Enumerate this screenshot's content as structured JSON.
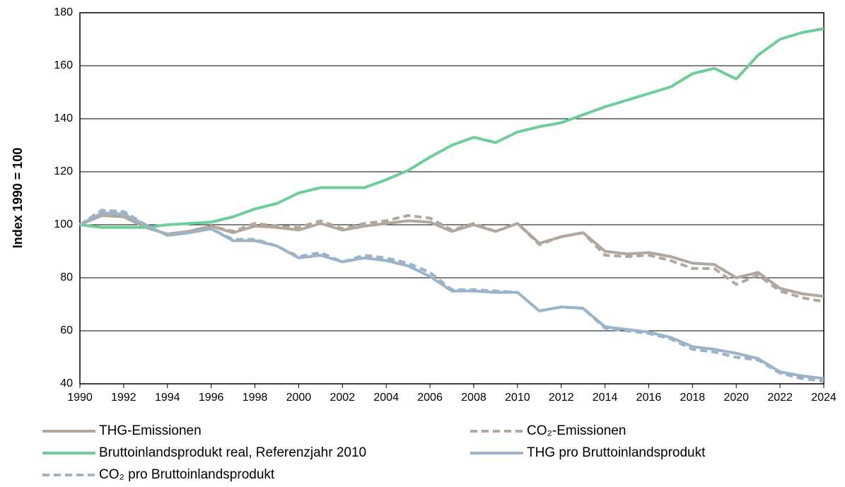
{
  "chart_data": {
    "type": "line",
    "y_label": "Index 1990 = 100",
    "x": [
      1990,
      1991,
      1992,
      1993,
      1994,
      1995,
      1996,
      1997,
      1998,
      1999,
      2000,
      2001,
      2002,
      2003,
      2004,
      2005,
      2006,
      2007,
      2008,
      2009,
      2010,
      2011,
      2012,
      2013,
      2014,
      2015,
      2016,
      2017,
      2018,
      2019,
      2020,
      2021,
      2022,
      2023,
      2024
    ],
    "xlim": [
      1990,
      2024
    ],
    "xticks": [
      1990,
      1992,
      1994,
      1996,
      1998,
      2000,
      2002,
      2004,
      2006,
      2008,
      2010,
      2012,
      2014,
      2016,
      2018,
      2020,
      2022,
      2024
    ],
    "ylim": [
      40,
      180
    ],
    "yticks": [
      40,
      60,
      80,
      100,
      120,
      140,
      160,
      180
    ],
    "grid": true,
    "legend": "bottom",
    "series": [
      {
        "name": "THG-Emissionen",
        "color": "#b3a69c",
        "dashed": false,
        "values": [
          100,
          103.5,
          103,
          99,
          96.5,
          97.5,
          99.5,
          97,
          99.5,
          99,
          98,
          100.5,
          98,
          99.5,
          100.5,
          101.5,
          101,
          97.5,
          100,
          97.5,
          100.5,
          93,
          95.5,
          97,
          90,
          89,
          89.5,
          88,
          85.5,
          85,
          80,
          82,
          76,
          74,
          73
        ]
      },
      {
        "name": "CO₂-Emissionen",
        "color": "#b3a69c",
        "dashed": true,
        "values": [
          100,
          105,
          104.5,
          99,
          96.5,
          97.5,
          99.5,
          97.5,
          100.5,
          99.5,
          99,
          101.5,
          98.5,
          100.5,
          101.5,
          103.5,
          102.5,
          98,
          100.5,
          97.5,
          100.5,
          92.5,
          95.5,
          97,
          88.5,
          88,
          88.5,
          86.5,
          83.5,
          83.5,
          77.5,
          81,
          75,
          72.5,
          71
        ]
      },
      {
        "name": "Bruttoinlandsprodukt real, Referenzjahr 2010",
        "color": "#6fce98",
        "dashed": false,
        "values": [
          100,
          99,
          99,
          99,
          100,
          100.5,
          101,
          103,
          106,
          108,
          112,
          114,
          114,
          114,
          117,
          120.5,
          125.5,
          130,
          133,
          131,
          135,
          137,
          138.5,
          141.5,
          144.5,
          147,
          149.5,
          152,
          157,
          159,
          155,
          164,
          170,
          172.5,
          174
        ]
      },
      {
        "name": "THG pro Bruttoinlandsprodukt",
        "color": "#9bb4c9",
        "dashed": false,
        "values": [
          100,
          104.5,
          104,
          100,
          96,
          97,
          98.5,
          94,
          94,
          92,
          87.5,
          88.5,
          86,
          87.5,
          86.5,
          84.5,
          80.5,
          75,
          75,
          74.5,
          74.5,
          67.5,
          69,
          68.5,
          61.5,
          60.5,
          59.5,
          57.5,
          54,
          53,
          51.5,
          49.5,
          44.5,
          43,
          42
        ]
      },
      {
        "name": "CO₂ pro Bruttoinlandsprodukt",
        "color": "#9bb4c9",
        "dashed": true,
        "values": [
          100,
          105.5,
          105,
          100,
          96,
          97,
          98.5,
          94.5,
          94.5,
          92,
          88,
          89.5,
          86,
          88.5,
          87.5,
          85.5,
          82,
          75.5,
          75.5,
          75,
          74.5,
          67.5,
          69,
          68.5,
          61,
          60,
          59,
          57,
          53,
          52,
          50,
          49,
          44,
          42,
          41
        ]
      }
    ]
  }
}
